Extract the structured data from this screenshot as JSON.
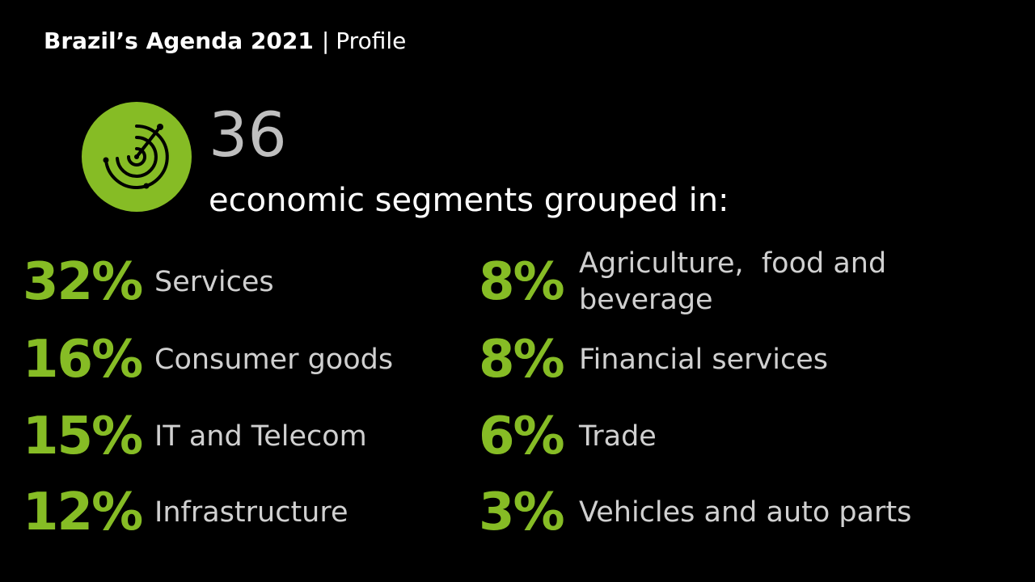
{
  "header": {
    "title": "Brazil’s Agenda 2021",
    "separator": "|",
    "subtitle": "Profile"
  },
  "badge": {
    "icon": "radar-icon",
    "color": "#86bc25"
  },
  "summary": {
    "count": "36",
    "text": "economic segments grouped in:"
  },
  "colors": {
    "accent": "#86bc25",
    "background": "#000000",
    "label": "#d0d0d0"
  },
  "segments_left": [
    {
      "percent": "32%",
      "label": "Services"
    },
    {
      "percent": "16%",
      "label": "Consumer goods"
    },
    {
      "percent": "15%",
      "label": "IT and Telecom"
    },
    {
      "percent": "12%",
      "label": "Infrastructure"
    }
  ],
  "segments_right": [
    {
      "percent": "8%",
      "label_line1": "Agriculture,  food and",
      "label_line2": "beverage"
    },
    {
      "percent": "8%",
      "label": "Financial services"
    },
    {
      "percent": "6%",
      "label": "Trade"
    },
    {
      "percent": "3%",
      "label": "Vehicles and auto parts"
    }
  ]
}
